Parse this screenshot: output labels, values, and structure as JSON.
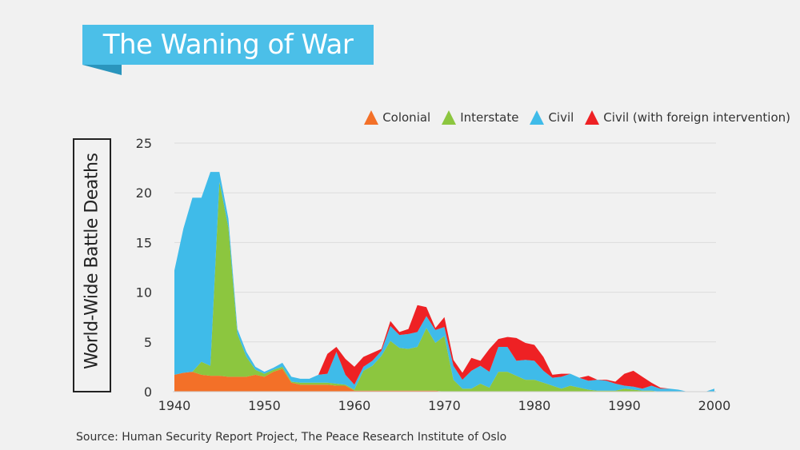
{
  "title": "The Waning of War",
  "source": "Source: Human Security Report Project, The Peace Research Institute of Oslo",
  "colors": {
    "banner": "#4bbfe8",
    "banner_fold": "#2a95bd",
    "colonial": "#f37028",
    "interstate": "#8cc63f",
    "civil": "#3fbbe9",
    "civil_foreign": "#ee2124"
  },
  "legend": [
    {
      "label": "Colonial",
      "color": "#f37028"
    },
    {
      "label": "Interstate",
      "color": "#8cc63f"
    },
    {
      "label": "Civil",
      "color": "#3fbbe9"
    },
    {
      "label": "Civil (with foreign intervention)",
      "color": "#ee2124"
    }
  ],
  "chart_data": {
    "type": "area",
    "title": "The Waning of War",
    "ylabel": "World-Wide Battle Deaths",
    "xlabel": "",
    "xlim": [
      1940,
      2000
    ],
    "ylim": [
      0,
      25
    ],
    "xticks": [
      1940,
      1950,
      1960,
      1970,
      1980,
      1990,
      2000
    ],
    "yticks": [
      0,
      5,
      10,
      15,
      20,
      25
    ],
    "grid": true,
    "legend_position": "top-right",
    "stacked": true,
    "x": [
      1940,
      1941,
      1942,
      1943,
      1944,
      1945,
      1946,
      1947,
      1948,
      1949,
      1950,
      1951,
      1952,
      1953,
      1954,
      1955,
      1956,
      1957,
      1958,
      1959,
      1960,
      1961,
      1962,
      1963,
      1964,
      1965,
      1966,
      1967,
      1968,
      1969,
      1970,
      1971,
      1972,
      1973,
      1974,
      1975,
      1976,
      1977,
      1978,
      1979,
      1980,
      1981,
      1982,
      1983,
      1984,
      1985,
      1986,
      1987,
      1988,
      1989,
      1990,
      1991,
      1992,
      1993,
      1994,
      1995,
      1996,
      1997,
      1998,
      1999,
      2000
    ],
    "series": [
      {
        "name": "Colonial",
        "values": [
          1.7,
          1.9,
          2.0,
          1.7,
          1.6,
          1.6,
          1.5,
          1.5,
          1.5,
          1.7,
          1.5,
          2.0,
          2.3,
          0.9,
          0.7,
          0.7,
          0.7,
          0.7,
          0.6,
          0.6,
          0.1,
          0.1,
          0.1,
          0.1,
          0.1,
          0.1,
          0.1,
          0.1,
          0.1,
          0.1,
          0,
          0,
          0,
          0,
          0,
          0,
          0,
          0,
          0,
          0,
          0,
          0,
          0,
          0,
          0,
          0,
          0,
          0,
          0,
          0,
          0,
          0,
          0,
          0,
          0,
          0,
          0,
          0,
          0,
          0,
          0
        ]
      },
      {
        "name": "Interstate",
        "values": [
          0,
          0,
          0,
          1.3,
          1.0,
          19.5,
          15.0,
          4.3,
          2.0,
          0.5,
          0.3,
          0.2,
          0.2,
          0.1,
          0.2,
          0.2,
          0.2,
          0.2,
          0.2,
          0.1,
          0.1,
          2.0,
          2.5,
          3.5,
          5.0,
          4.3,
          4.2,
          4.4,
          6.3,
          4.8,
          5.6,
          1.2,
          0.3,
          0.3,
          0.8,
          0.4,
          2.0,
          2.0,
          1.6,
          1.2,
          1.2,
          0.9,
          0.6,
          0.3,
          0.6,
          0.4,
          0.2,
          0.1,
          0.1,
          0.1,
          0.3,
          0.2,
          0.1,
          0.1,
          0,
          0,
          0,
          0,
          0,
          0,
          0
        ]
      },
      {
        "name": "Civil",
        "values": [
          10.5,
          14.5,
          17.5,
          16.5,
          19.5,
          1.0,
          0.9,
          0.5,
          0.5,
          0.3,
          0.2,
          0.2,
          0.4,
          0.5,
          0.4,
          0.4,
          0.8,
          0.9,
          3.2,
          1.0,
          0.5,
          0.4,
          0.5,
          0.5,
          1.5,
          1.3,
          1.5,
          1.5,
          1.2,
          1.3,
          0.9,
          1.4,
          0.9,
          1.8,
          1.8,
          1.6,
          2.5,
          2.5,
          1.5,
          2.0,
          1.9,
          1.2,
          0.8,
          1.2,
          1.2,
          1.0,
          0.9,
          1.1,
          1.0,
          0.7,
          0.3,
          0.3,
          0.2,
          0.5,
          0.3,
          0.3,
          0.2,
          0,
          0,
          0,
          0.3
        ]
      },
      {
        "name": "Civil (with foreign intervention)",
        "values": [
          0,
          0,
          0,
          0,
          0,
          0,
          0,
          0,
          0,
          0,
          0,
          0,
          0,
          0,
          0,
          0,
          0,
          2.0,
          0.5,
          1.6,
          1.8,
          1.0,
          0.8,
          0.2,
          0.5,
          0.3,
          0.5,
          2.7,
          0.9,
          0.2,
          1.0,
          0.6,
          0.7,
          1.3,
          0.5,
          2.3,
          0.8,
          1.0,
          2.3,
          1.7,
          1.6,
          1.4,
          0.3,
          0.3,
          0,
          0,
          0.5,
          0,
          0.1,
          0.2,
          1.2,
          1.6,
          1.2,
          0.3,
          0.1,
          0,
          0,
          0,
          0,
          0,
          0
        ]
      }
    ]
  }
}
